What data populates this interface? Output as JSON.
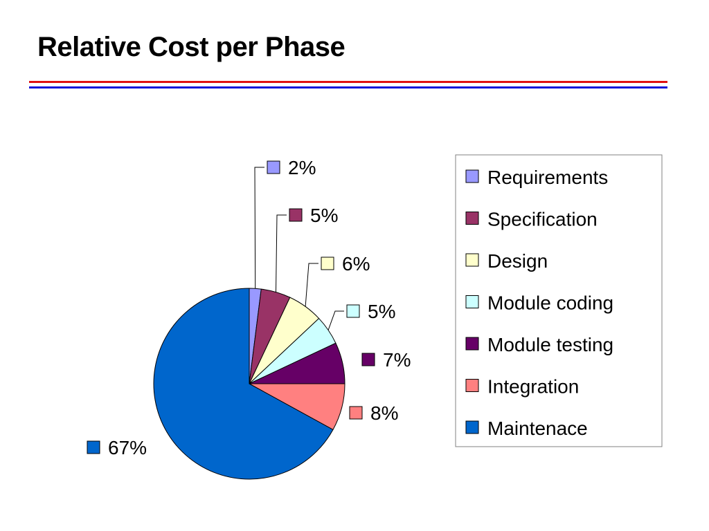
{
  "slide": {
    "title": "Relative Cost per Phase",
    "rule_colors": {
      "red": "#e01010",
      "blue": "#1010d8"
    }
  },
  "chart_data": {
    "type": "pie",
    "title": "",
    "legend_position": "right",
    "start_angle_deg": 0,
    "direction": "clockwise",
    "slices": [
      {
        "name": "Requirements",
        "value": 2,
        "label": "2%",
        "color": "#9999ff"
      },
      {
        "name": "Specification",
        "value": 5,
        "label": "5%",
        "color": "#993366"
      },
      {
        "name": "Design",
        "value": 6,
        "label": "6%",
        "color": "#ffffcc"
      },
      {
        "name": "Module coding",
        "value": 5,
        "label": "5%",
        "color": "#ccffff"
      },
      {
        "name": "Module testing",
        "value": 7,
        "label": "7%",
        "color": "#660066"
      },
      {
        "name": "Integration",
        "value": 8,
        "label": "8%",
        "color": "#ff8080"
      },
      {
        "name": "Maintenace",
        "value": 67,
        "label": "67%",
        "color": "#0066cc"
      }
    ]
  }
}
